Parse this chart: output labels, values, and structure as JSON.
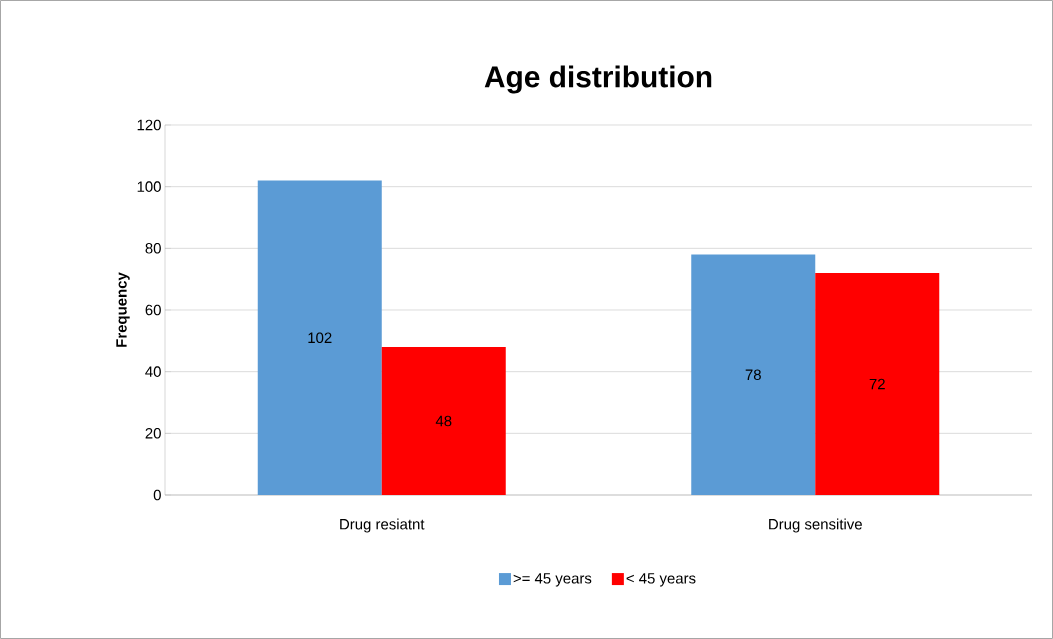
{
  "chart_data": {
    "type": "bar",
    "title": "Age distribution",
    "ylabel": "Frequency",
    "categories": [
      "Drug resiatnt",
      "Drug sensitive"
    ],
    "series": [
      {
        "name": ">= 45 years",
        "color": "#5b9bd5",
        "values": [
          102,
          78
        ]
      },
      {
        "name": "< 45 years",
        "color": "#ff0000",
        "values": [
          48,
          72
        ]
      }
    ],
    "ylim": [
      0,
      120
    ],
    "yticks": [
      0,
      20,
      40,
      60,
      80,
      100,
      120
    ],
    "grid": "y",
    "legend": "bottom",
    "data_labels": true
  }
}
